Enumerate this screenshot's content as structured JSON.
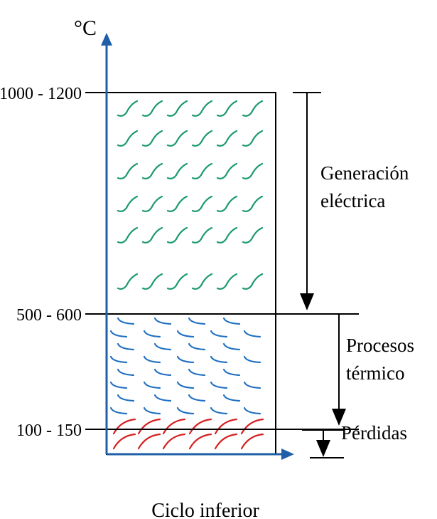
{
  "axis": {
    "unit_label": "°C",
    "axis_color": "#1f5fa8"
  },
  "levels": {
    "top": "1000 - 1200",
    "mid": "500 - 600",
    "low": "100 - 150"
  },
  "stages": [
    {
      "key": "generation",
      "label_lines": [
        "Generación",
        "eléctrica"
      ],
      "color": "#1a9a6c"
    },
    {
      "key": "thermal",
      "label_lines": [
        "Procesos",
        "térmico"
      ],
      "color": "#1f6fc2"
    },
    {
      "key": "losses",
      "label_lines": [
        "Pérdidas"
      ],
      "color": "#d62020"
    }
  ],
  "caption": "Ciclo inferior"
}
